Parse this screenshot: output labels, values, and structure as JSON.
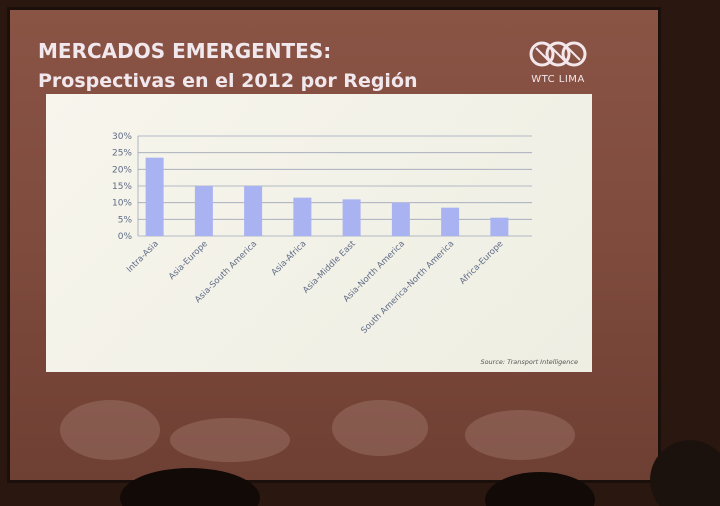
{
  "slide": {
    "title_line1": "MERCADOS EMERGENTES:",
    "title_line2": "Prospectivas en el 2012 por Región",
    "logo_text": "WTC LIMA",
    "source": "Source: Transport Intelligence"
  },
  "colors": {
    "bar": "#aab3f2",
    "grid": "#9ea6b8",
    "tick_text": "#5f6b86"
  },
  "chart_data": {
    "type": "bar",
    "categories": [
      "Intra-Asia",
      "Asia-Europe",
      "Asia-South America",
      "Asia-Africa",
      "Asia-Middle East",
      "Asia-North America",
      "South America-North America",
      "Africa-Europe"
    ],
    "values": [
      23.5,
      15,
      15,
      11.5,
      11,
      10,
      8.5,
      5.5
    ],
    "yticks": [
      "0%",
      "5%",
      "10%",
      "15%",
      "20%",
      "25%",
      "30%"
    ],
    "ylim": [
      0,
      30
    ],
    "grid": true,
    "legend": "none"
  }
}
